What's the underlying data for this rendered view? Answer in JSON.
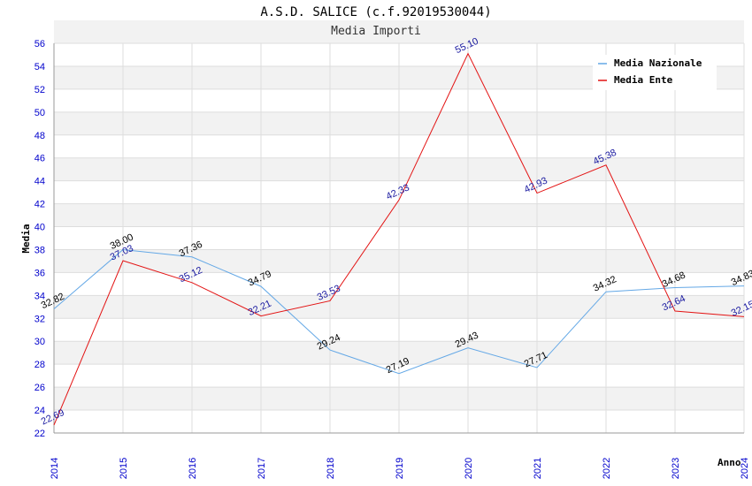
{
  "colors": {
    "nazionale": "#64a8e6",
    "ente": "#e31313",
    "nazionale_label": "#000000",
    "ente_label": "#1a1aa0",
    "band": "#f2f2f2",
    "grid": "#dddddd",
    "tick": "#0000cc"
  },
  "chart_data": {
    "type": "line",
    "title": "A.S.D. SALICE (c.f.92019530044)",
    "subtitle": "Media Importi",
    "xlabel": "Anno",
    "ylabel": "Media",
    "ylim": [
      22,
      56
    ],
    "y_ticks": [
      "22",
      "24",
      "26",
      "28",
      "30",
      "32",
      "34",
      "36",
      "38",
      "40",
      "42",
      "44",
      "46",
      "48",
      "50",
      "52",
      "54",
      "56"
    ],
    "categories": [
      "2014",
      "2015",
      "2016",
      "2017",
      "2018",
      "2019",
      "2020",
      "2021",
      "2022",
      "2023",
      "2024"
    ],
    "legend_position": "top-right",
    "series": [
      {
        "name": "Media Nazionale",
        "key": "nazionale",
        "values": [
          32.82,
          38.0,
          37.36,
          34.79,
          29.24,
          27.19,
          29.43,
          27.71,
          34.32,
          34.68,
          34.83
        ],
        "labels": [
          "32.82",
          "38.00",
          "37.36",
          "34.79",
          "29.24",
          "27.19",
          "29.43",
          "27.71",
          "34.32",
          "34.68",
          "34.83"
        ]
      },
      {
        "name": "Media Ente",
        "key": "ente",
        "values": [
          22.69,
          37.03,
          35.12,
          32.21,
          33.53,
          42.33,
          55.1,
          42.93,
          45.38,
          32.64,
          32.15
        ],
        "labels": [
          "22.69",
          "37.03",
          "35.12",
          "32.21",
          "33.53",
          "42.33",
          "55.10",
          "42.93",
          "45.38",
          "32.64",
          "32.15"
        ]
      }
    ]
  }
}
